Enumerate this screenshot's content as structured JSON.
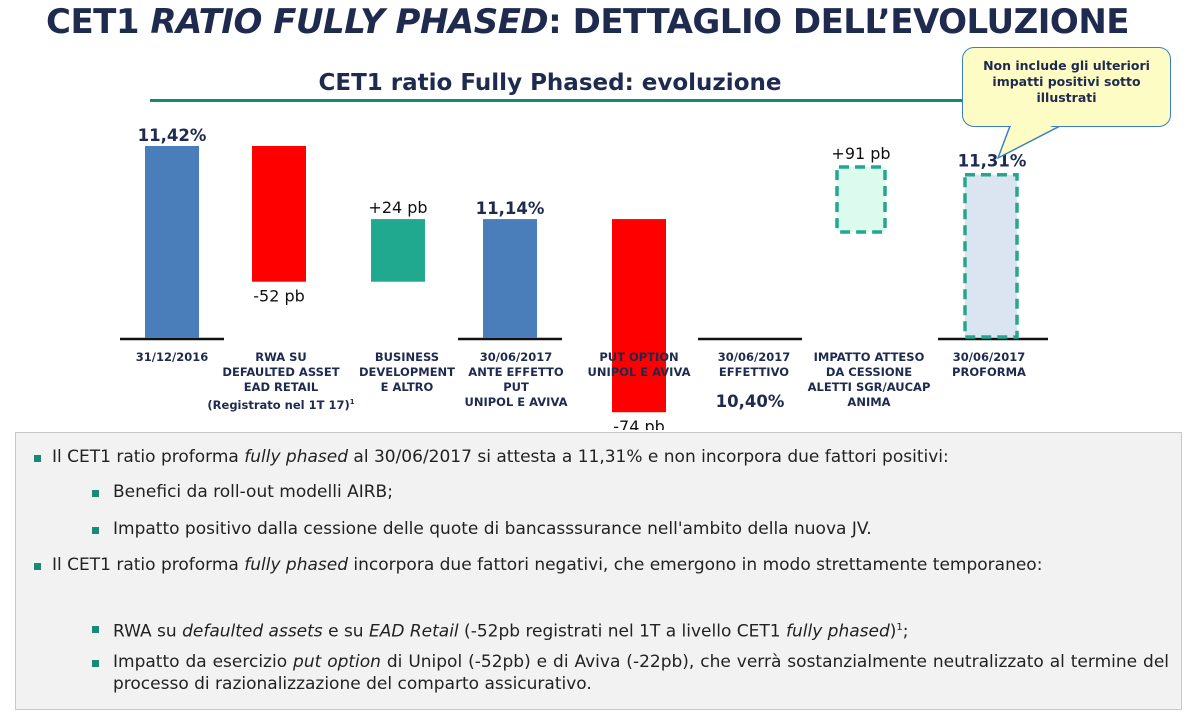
{
  "title": {
    "part1": "CET1 ",
    "part2_italic": "RATIO FULLY PHASED",
    "part3": ": DETTAGLIO DELL’EVOLUZIONE"
  },
  "chart_subtitle": "CET1 ratio Fully Phased: evoluzione",
  "callout": {
    "line1": "Non include gli  ulteriori",
    "line2": "impatti positivi sotto",
    "line3": "illustrati"
  },
  "colors": {
    "total_bar": "#4a7ebb",
    "negative": "#ff0000",
    "positive": "#21a98f",
    "expected_fill": "#dcfbee",
    "proforma_fill": "#dbe5f1",
    "dash_border": "#21a98f",
    "title_text": "#1f2a4f",
    "rule": "#158a6e",
    "bullet": "#1a8a72"
  },
  "chart_data": {
    "type": "bar",
    "subtype": "waterfall",
    "title": "CET1 ratio Fully Phased: evoluzione",
    "unit_totals": "%",
    "unit_deltas": "pb",
    "categories": [
      [
        "31/12/2016"
      ],
      [
        "RWA SU",
        "DEFAULTED ASSET",
        "EAD RETAIL",
        "(Registrato nel 1T 17)¹"
      ],
      [
        "BUSINESS",
        "DEVELOPMENT",
        "E ALTRO"
      ],
      [
        "30/06/2017",
        "ANTE EFFETTO",
        "PUT",
        "UNIPOL E AVIVA"
      ],
      [
        "PUT OPTION",
        "UNIPOL E AVIVA"
      ],
      [
        "30/06/2017",
        "EFFETTIVO"
      ],
      [
        "IMPATTO ATTESO",
        "DA CESSIONE",
        "ALETTI SGR/AUCAP",
        "ANIMA"
      ],
      [
        "30/06/2017",
        "PROFORMA"
      ]
    ],
    "bars": [
      {
        "kind": "total",
        "value": 11.42,
        "label": "11,42%"
      },
      {
        "kind": "negative",
        "delta_pb": -52,
        "label": "-52 pb"
      },
      {
        "kind": "positive",
        "delta_pb": 24,
        "label": "+24 pb"
      },
      {
        "kind": "total",
        "value": 11.14,
        "label": "11,14%"
      },
      {
        "kind": "negative",
        "delta_pb": -74,
        "label": "-74 pb"
      },
      {
        "kind": "total",
        "value": 10.4,
        "label": "10,40%"
      },
      {
        "kind": "expected",
        "delta_pb": 91,
        "label": "+91 pb"
      },
      {
        "kind": "proforma",
        "value": 11.31,
        "label": "11,31%"
      }
    ],
    "axis_visible": false,
    "grid": false,
    "legend": "none"
  },
  "notes": {
    "b1": {
      "pre": "Il CET1 ratio proforma ",
      "it": "fully phased",
      "post": " al 30/06/2017 si attesta a 11,31% e non incorpora due fattori positivi:"
    },
    "b1a": "Benefici da roll-out modelli AIRB;",
    "b1b": "Impatto positivo dalla cessione delle quote di bancasssurance nell'ambito della nuova JV.",
    "b2": {
      "pre": "Il CET1 ratio proforma ",
      "it": "fully phased",
      "post": " incorpora due fattori negativi, che emergono in modo strettamente temporaneo:"
    },
    "b2a": {
      "t1": "RWA su ",
      "i1": "defaulted assets",
      "t2": " e su ",
      "i2": "EAD Retail",
      "t3": " (-52pb registrati nel 1T a livello CET1 ",
      "i3": "fully phased",
      "t4": ")",
      "sup": "1",
      "t5": ";"
    },
    "b2b": {
      "t1": "Impatto da esercizio ",
      "i1": "put option",
      "t2": " di Unipol (-52pb) e di Aviva (-22pb), che verrà sostanzialmente neutralizzato al termine del processo di razionalizzazione del comparto assicurativo."
    }
  }
}
